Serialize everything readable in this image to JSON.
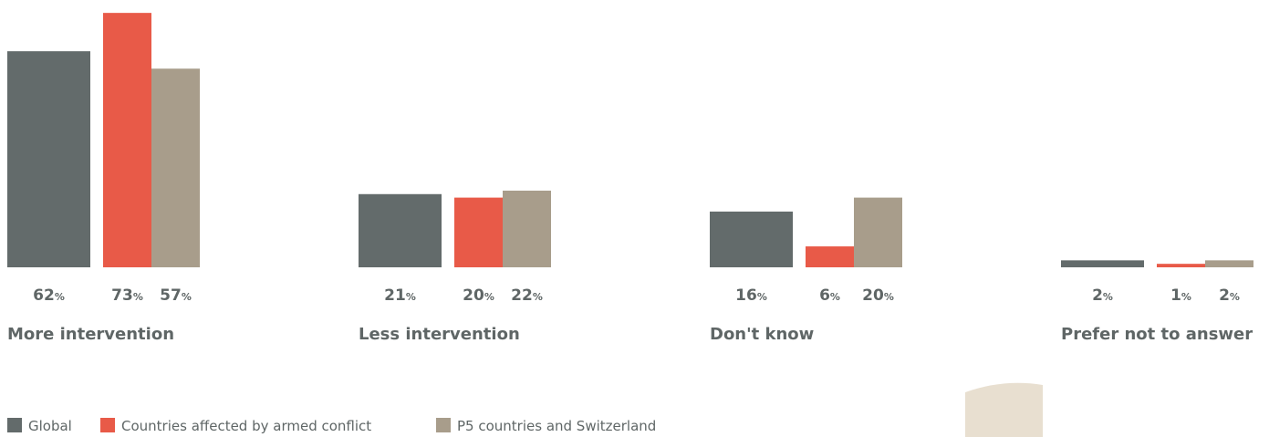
{
  "chart_data": {
    "type": "bar",
    "categories": [
      "More intervention",
      "Less intervention",
      "Don't know",
      "Prefer not to answer"
    ],
    "series": [
      {
        "name": "Global",
        "color": "#636b6b",
        "values": [
          62,
          21,
          16,
          2
        ],
        "value_labels": [
          "62%",
          "21%",
          "16%",
          "2%"
        ]
      },
      {
        "name": "Countries affected by armed conflict",
        "color": "#e85a48",
        "values": [
          73,
          20,
          6,
          1
        ],
        "value_labels": [
          "73%",
          "20%",
          "6%",
          "1%"
        ]
      },
      {
        "name": "P5 countries and Switzerland",
        "color": "#a89d8b",
        "values": [
          57,
          22,
          20,
          2
        ],
        "value_labels": [
          "57%",
          "22%",
          "20%",
          "2%"
        ]
      }
    ]
  }
}
